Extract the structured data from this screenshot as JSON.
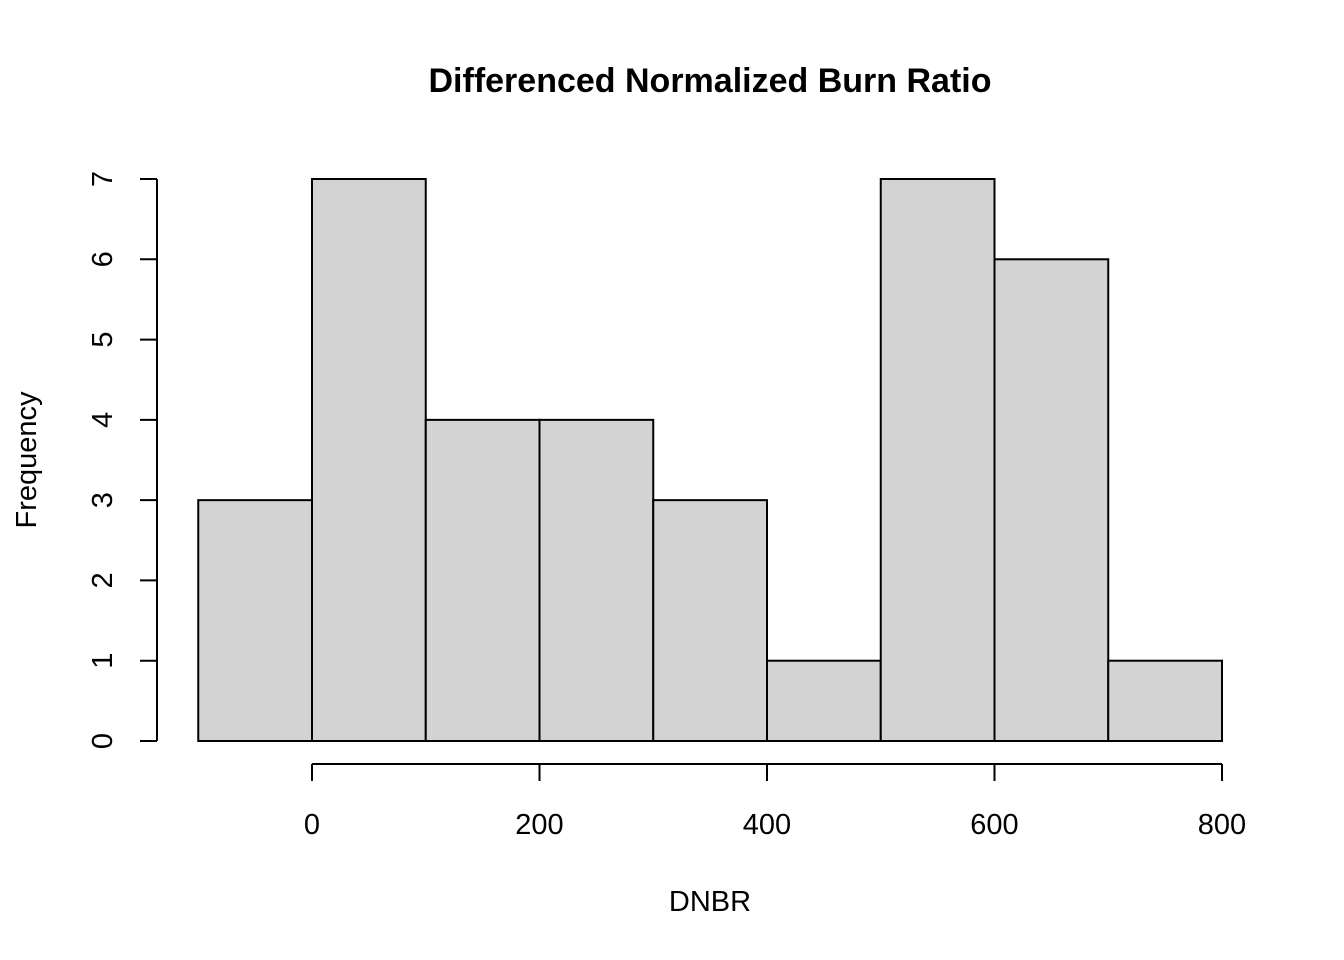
{
  "chart_data": {
    "type": "bar",
    "subtype": "histogram",
    "title": "Differenced Normalized Burn Ratio",
    "xlabel": "DNBR",
    "ylabel": "Frequency",
    "bin_edges": [
      -100,
      0,
      100,
      200,
      300,
      400,
      500,
      600,
      700,
      800
    ],
    "values": [
      3,
      7,
      4,
      4,
      3,
      1,
      7,
      6,
      1
    ],
    "xlim": [
      -100,
      800
    ],
    "ylim": [
      0,
      7
    ],
    "x_ticks": [
      "0",
      "200",
      "400",
      "600",
      "800"
    ],
    "y_ticks": [
      "0",
      "1",
      "2",
      "3",
      "4",
      "5",
      "6",
      "7"
    ],
    "grid": false,
    "bar_fill": "#d3d3d3",
    "bar_stroke": "#000000"
  }
}
